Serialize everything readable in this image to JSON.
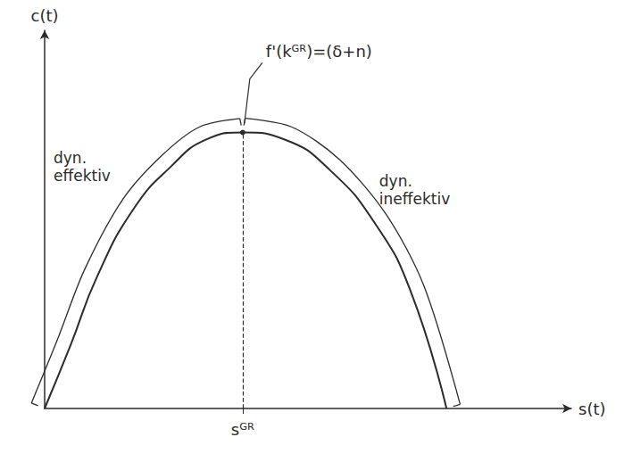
{
  "chart_data": {
    "type": "line",
    "x_label": "s(t)",
    "y_label": "c(t)",
    "x": [
      0,
      0.05,
      0.1,
      0.17,
      0.24,
      0.305,
      0.376,
      0.458,
      0.542,
      0.627,
      0.695,
      0.763
    ],
    "values": [
      0,
      0.17,
      0.35,
      0.53,
      0.64,
      0.71,
      0.73,
      0.71,
      0.63,
      0.49,
      0.31,
      0
    ],
    "color": "#2b2b2b",
    "xlim": [
      0,
      1
    ],
    "ylim": [
      0,
      1
    ],
    "xticks": [
      {
        "value": 0.376,
        "label": "sᴳᴿ"
      }
    ],
    "yticks": [],
    "tick_labels": "x",
    "grid": false,
    "marker": "none",
    "line_style": "solid",
    "annotations": [
      {
        "text": "f'(kᴳᴿ)=(δ+n)",
        "x": 0.376,
        "y": 0.73
      },
      {
        "text": "dyn. effektiv",
        "x_range": [
          0,
          0.376
        ]
      },
      {
        "text": "dyn. ineffektiv",
        "x_range": [
          0.376,
          0.763
        ]
      }
    ]
  }
}
